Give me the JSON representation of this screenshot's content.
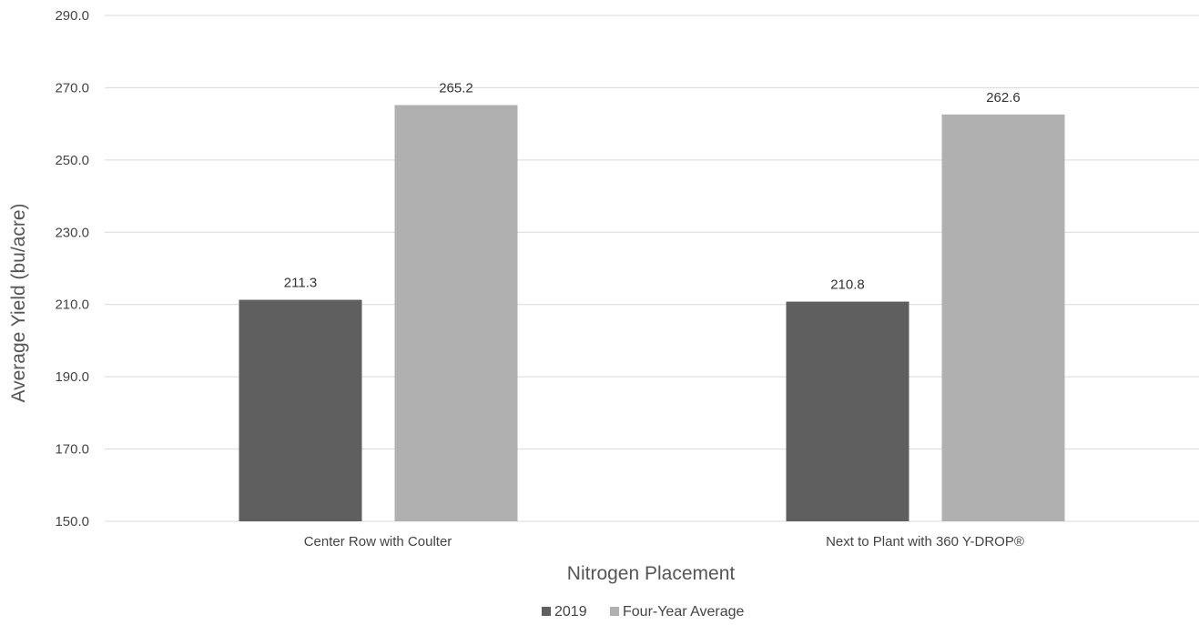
{
  "chart_data": {
    "type": "bar",
    "categories": [
      "Center Row with Coulter",
      "Next to Plant with 360 Y-DROP®"
    ],
    "series": [
      {
        "name": "2019",
        "values": [
          211.3,
          210.8
        ],
        "color": "#5f5f5f"
      },
      {
        "name": "Four-Year Average",
        "values": [
          265.2,
          262.6
        ],
        "color": "#b0b0b0"
      }
    ],
    "data_labels": [
      [
        "211.3",
        "210.8"
      ],
      [
        "265.2",
        "262.6"
      ]
    ],
    "xlabel": "Nitrogen Placement",
    "ylabel": "Average Yield (bu/acre)",
    "ylim": [
      150,
      290
    ],
    "yticks": [
      150,
      170,
      190,
      210,
      230,
      250,
      270,
      290
    ],
    "ytick_labels": [
      "150.0",
      "170.0",
      "190.0",
      "210.0",
      "230.0",
      "250.0",
      "270.0",
      "290.0"
    ],
    "grid": true,
    "legend_position": "bottom-center",
    "colors": {
      "gridline": "#d9d9d9",
      "text": "#444444"
    }
  }
}
